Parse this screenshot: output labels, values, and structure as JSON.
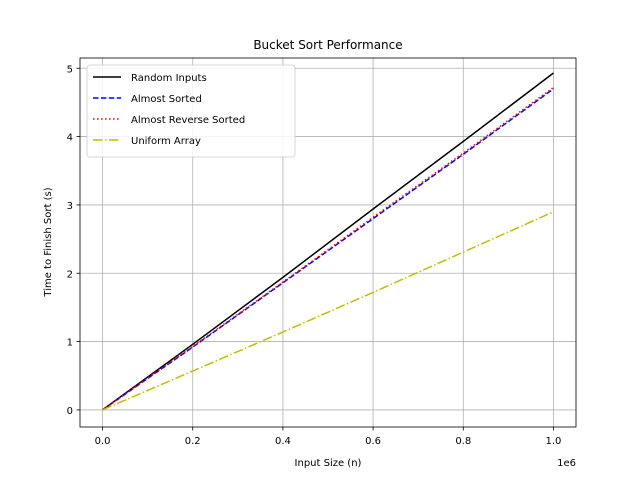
{
  "chart_data": {
    "type": "line",
    "title": "Bucket Sort Performance",
    "xlabel": "Input Size (n)",
    "ylabel": "Time to Finish Sort (s)",
    "x_offset_label": "1e6",
    "xlim": [
      -0.05,
      1.05
    ],
    "ylim": [
      -0.25,
      5.15
    ],
    "xticks": [
      0.0,
      0.2,
      0.4,
      0.6,
      0.8,
      1.0
    ],
    "xtick_labels": [
      "0.0",
      "0.2",
      "0.4",
      "0.6",
      "0.8",
      "1.0"
    ],
    "yticks": [
      0,
      1,
      2,
      3,
      4,
      5
    ],
    "ytick_labels": [
      "0",
      "1",
      "2",
      "3",
      "4",
      "5"
    ],
    "grid": true,
    "legend_position": "top-left",
    "x": [
      0.0,
      0.2,
      0.4,
      0.6,
      0.8,
      1.0
    ],
    "series": [
      {
        "name": "Random Inputs",
        "color": "#000000",
        "style": "solid",
        "values": [
          0.0,
          0.96,
          1.94,
          2.94,
          3.93,
          4.93
        ]
      },
      {
        "name": "Almost Sorted",
        "color": "#0000ff",
        "style": "dashed",
        "values": [
          0.0,
          0.92,
          1.86,
          2.8,
          3.74,
          4.7
        ]
      },
      {
        "name": "Almost Reverse Sorted",
        "color": "#ff0000",
        "style": "dotted",
        "values": [
          0.0,
          0.93,
          1.87,
          2.82,
          3.76,
          4.72
        ]
      },
      {
        "name": "Uniform Array",
        "color": "#bfbf00",
        "style": "dashdot",
        "values": [
          0.0,
          0.57,
          1.14,
          1.72,
          2.31,
          2.9
        ]
      }
    ]
  }
}
